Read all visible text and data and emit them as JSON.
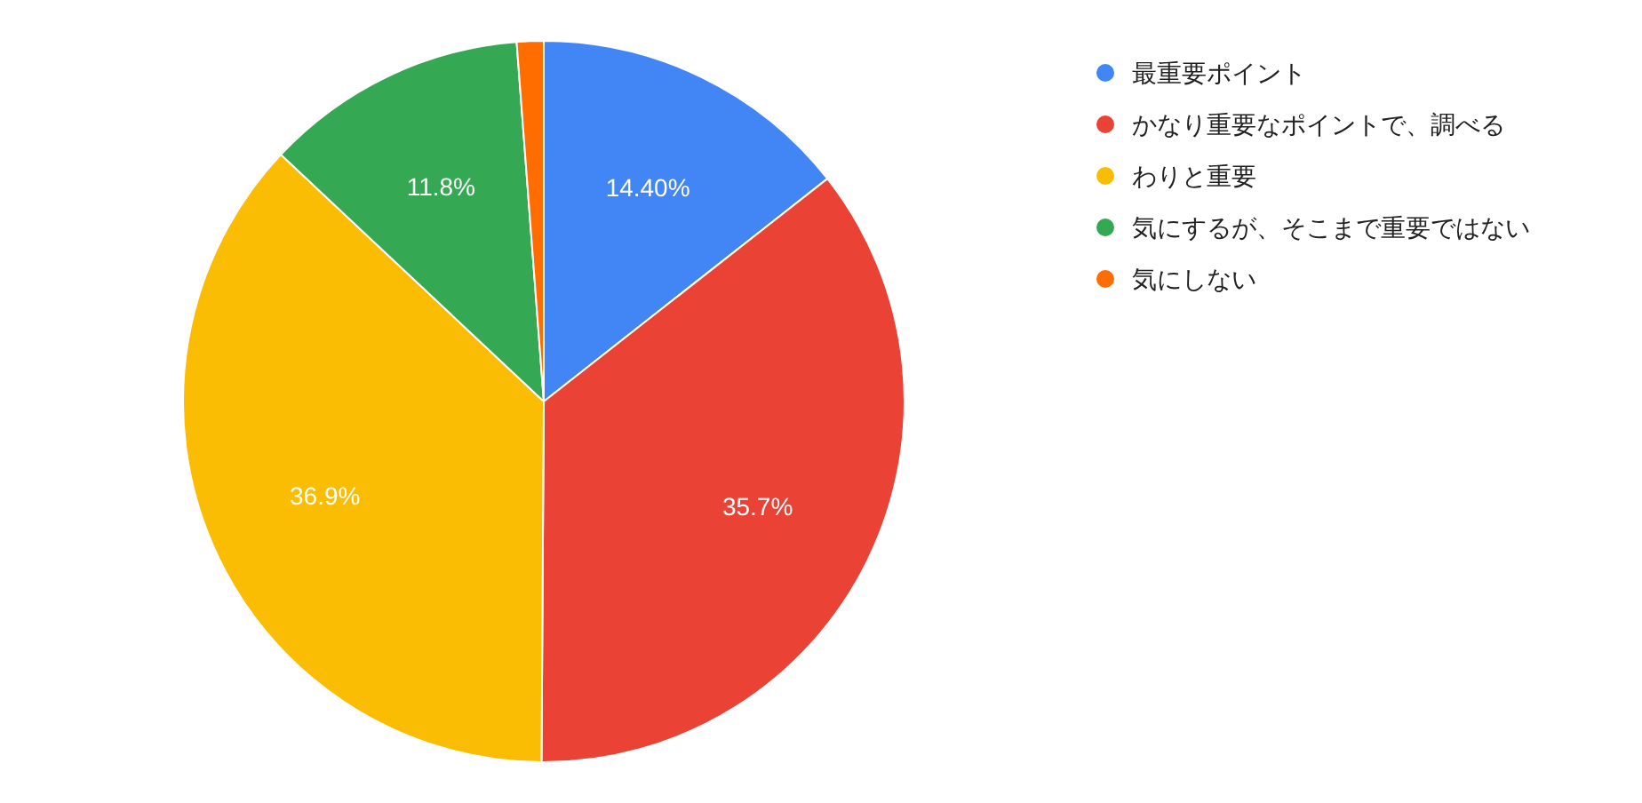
{
  "chart_data": {
    "type": "pie",
    "categories": [
      "最重要ポイント",
      "かなり重要なポイントで、調べる",
      "わりと重要",
      "気にするが、そこまで重要ではない",
      "気にしない"
    ],
    "values": [
      14.4,
      35.7,
      36.9,
      11.8,
      1.2
    ],
    "value_labels": [
      "14.40%",
      "35.7%",
      "36.9%",
      "11.8%",
      null
    ],
    "colors": [
      "#4285f4",
      "#ea4335",
      "#fbbc04",
      "#34a853",
      "#ff6d01"
    ],
    "legend": "right"
  }
}
